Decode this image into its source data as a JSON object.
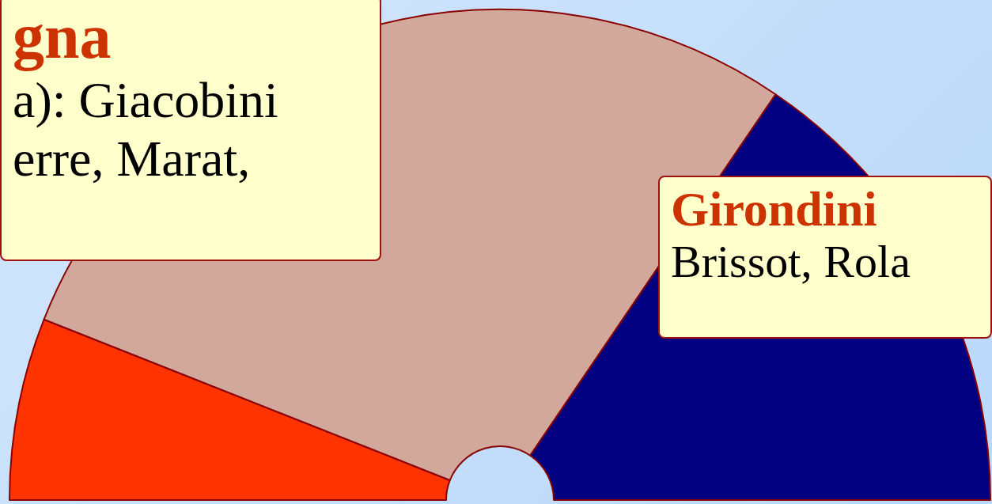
{
  "chart_data": {
    "type": "pie",
    "categories": [
      null,
      null,
      null
    ],
    "values": [
      12,
      57,
      31
    ],
    "colors": [
      "#ff3300",
      "#d2a89c",
      "#000080"
    ],
    "annotations": [
      "gna\na): Giacobini\nerre, Marat,",
      "Girondini\nBrissot, Rola"
    ]
  }
}
